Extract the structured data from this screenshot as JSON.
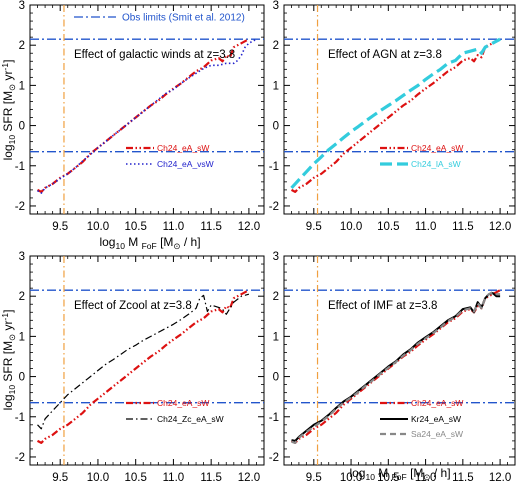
{
  "obs_legend": "Obs limits (Smit et al. 2012)",
  "ylabel": {
    "prefix": "log",
    "sub": "10",
    "main": " SFR [M",
    "sub2": "⊙",
    "main2": " yr",
    "sup": "-1",
    "end": "]"
  },
  "xlabel": {
    "prefix": "log",
    "sub": "10",
    "main": " M ",
    "sub2": "FoF",
    "main2": " [M",
    "sub3": "⊙",
    "end": " / h]"
  },
  "colors": {
    "red": "#dd1111",
    "blue": "#2222cc",
    "cyan": "#33ccdd",
    "black": "#000000",
    "grey": "#888888",
    "orange": "#f0a040",
    "obs_blue": "#2255cc"
  },
  "chart_data": [
    {
      "type": "line",
      "title": "Effect of galactic winds at z=3.8",
      "xlim": [
        9.1,
        12.2
      ],
      "ylim": [
        -2.2,
        3
      ],
      "xticks": [
        "9.5",
        "10.0",
        "10.5",
        "11.0",
        "11.5",
        "12.0"
      ],
      "yticks": [
        "-2",
        "-1",
        "0",
        "1",
        "2",
        "3"
      ],
      "hlines": [
        2.15,
        -0.65
      ],
      "vline": 9.55,
      "series": [
        {
          "name": "Ch24_eA_sW",
          "style": "dashdotdot",
          "color": "#dd1111",
          "width": 2.2,
          "x": [
            9.2,
            9.25,
            9.3,
            9.4,
            9.5,
            9.6,
            9.7,
            9.8,
            9.9,
            10.0,
            10.1,
            10.2,
            10.3,
            10.4,
            10.5,
            10.6,
            10.7,
            10.8,
            10.9,
            11.0,
            11.1,
            11.2,
            11.3,
            11.4,
            11.5,
            11.6,
            11.65,
            11.7,
            11.75,
            11.8,
            11.85,
            11.9,
            11.95,
            12.0
          ],
          "y": [
            -1.6,
            -1.65,
            -1.55,
            -1.45,
            -1.3,
            -1.2,
            -1.05,
            -0.9,
            -0.7,
            -0.55,
            -0.4,
            -0.25,
            -0.1,
            0.05,
            0.2,
            0.35,
            0.5,
            0.62,
            0.78,
            0.92,
            1.05,
            1.2,
            1.35,
            1.45,
            1.62,
            1.68,
            1.6,
            1.75,
            1.7,
            1.95,
            2.0,
            2.05,
            2.1,
            2.15
          ]
        },
        {
          "name": "Ch24_eA_vsW",
          "style": "dotted",
          "color": "#2222cc",
          "width": 1.6,
          "x": [
            9.2,
            9.25,
            9.3,
            9.4,
            9.5,
            9.6,
            9.7,
            9.8,
            9.9,
            10.0,
            10.1,
            10.2,
            10.3,
            10.4,
            10.5,
            10.6,
            10.7,
            10.8,
            10.9,
            11.0,
            11.1,
            11.2,
            11.3,
            11.4,
            11.5,
            11.6,
            11.7,
            11.8,
            11.85,
            11.9,
            11.95,
            12.0,
            12.1
          ],
          "y": [
            -1.62,
            -1.68,
            -1.55,
            -1.45,
            -1.32,
            -1.2,
            -1.05,
            -0.88,
            -0.72,
            -0.55,
            -0.4,
            -0.25,
            -0.1,
            0.05,
            0.2,
            0.35,
            0.5,
            0.65,
            0.8,
            0.9,
            1.05,
            1.18,
            1.3,
            1.42,
            1.5,
            1.5,
            1.55,
            1.55,
            1.62,
            1.75,
            1.95,
            2.05,
            2.15
          ]
        }
      ]
    },
    {
      "type": "line",
      "title": "Effect of AGN at z=3.8",
      "xlim": [
        9.1,
        12.2
      ],
      "ylim": [
        -2.2,
        3
      ],
      "xticks": [
        "9.5",
        "10.0",
        "10.5",
        "11.0",
        "11.5",
        "12.0"
      ],
      "yticks": [
        "-2",
        "-1",
        "0",
        "1",
        "2",
        "3"
      ],
      "hlines": [
        2.15,
        -0.65
      ],
      "vline": 9.55,
      "series": [
        {
          "name": "Ch24_eA_sW",
          "style": "dashdotdot",
          "color": "#dd1111",
          "width": 2.2,
          "x": [
            9.2,
            9.25,
            9.3,
            9.4,
            9.5,
            9.6,
            9.7,
            9.8,
            9.9,
            10.0,
            10.1,
            10.2,
            10.3,
            10.4,
            10.5,
            10.6,
            10.7,
            10.8,
            10.9,
            11.0,
            11.1,
            11.2,
            11.3,
            11.4,
            11.5,
            11.6,
            11.65,
            11.7,
            11.75,
            11.8,
            11.85,
            11.9,
            11.95,
            12.0
          ],
          "y": [
            -1.6,
            -1.65,
            -1.55,
            -1.45,
            -1.3,
            -1.2,
            -1.05,
            -0.9,
            -0.7,
            -0.55,
            -0.4,
            -0.25,
            -0.1,
            0.05,
            0.2,
            0.35,
            0.5,
            0.62,
            0.78,
            0.92,
            1.05,
            1.2,
            1.35,
            1.45,
            1.62,
            1.68,
            1.6,
            1.75,
            1.7,
            1.95,
            2.0,
            2.05,
            2.1,
            2.15
          ]
        },
        {
          "name": "Ch24_lA_sW",
          "style": "longdash",
          "color": "#33ccdd",
          "width": 3.2,
          "x": [
            9.2,
            9.3,
            9.4,
            9.5,
            9.6,
            9.7,
            9.8,
            9.9,
            10.0,
            10.1,
            10.2,
            10.3,
            10.4,
            10.5,
            10.6,
            10.7,
            10.8,
            10.9,
            11.0,
            11.1,
            11.2,
            11.3,
            11.4,
            11.5,
            11.6,
            11.7,
            11.75,
            11.8,
            11.9,
            12.0
          ],
          "y": [
            -1.55,
            -1.35,
            -1.15,
            -0.95,
            -0.78,
            -0.6,
            -0.45,
            -0.3,
            -0.15,
            -0.02,
            0.12,
            0.25,
            0.38,
            0.5,
            0.62,
            0.75,
            0.88,
            1.0,
            1.15,
            1.28,
            1.4,
            1.55,
            1.62,
            1.8,
            1.85,
            1.9,
            1.8,
            1.95,
            2.05,
            2.15
          ]
        }
      ]
    },
    {
      "type": "line",
      "title": "Effect of Zcool at z=3.8",
      "xlim": [
        9.1,
        12.2
      ],
      "ylim": [
        -2.2,
        3
      ],
      "xticks": [
        "9.5",
        "10.0",
        "10.5",
        "11.0",
        "11.5",
        "12.0"
      ],
      "yticks": [
        "-2",
        "-1",
        "0",
        "1",
        "2",
        "3"
      ],
      "hlines": [
        2.15,
        -0.65
      ],
      "vline": 9.55,
      "series": [
        {
          "name": "Ch24_eA_sW",
          "style": "dashdotdot",
          "color": "#dd1111",
          "width": 2.2,
          "x": [
            9.2,
            9.25,
            9.3,
            9.4,
            9.5,
            9.6,
            9.7,
            9.8,
            9.9,
            10.0,
            10.1,
            10.2,
            10.3,
            10.4,
            10.5,
            10.6,
            10.7,
            10.8,
            10.9,
            11.0,
            11.1,
            11.2,
            11.3,
            11.4,
            11.5,
            11.6,
            11.65,
            11.7,
            11.75,
            11.8,
            11.85,
            11.9,
            11.95,
            12.0
          ],
          "y": [
            -1.6,
            -1.65,
            -1.55,
            -1.45,
            -1.3,
            -1.2,
            -1.05,
            -0.9,
            -0.7,
            -0.55,
            -0.4,
            -0.25,
            -0.1,
            0.05,
            0.2,
            0.35,
            0.5,
            0.62,
            0.78,
            0.92,
            1.05,
            1.2,
            1.35,
            1.45,
            1.62,
            1.68,
            1.6,
            1.75,
            1.7,
            1.95,
            2.0,
            2.05,
            2.1,
            2.15
          ]
        },
        {
          "name": "Ch24_Zc_eA_sW",
          "style": "dashdot",
          "color": "#000000",
          "width": 1.2,
          "x": [
            9.2,
            9.25,
            9.3,
            9.4,
            9.5,
            9.6,
            9.7,
            9.8,
            9.9,
            10.0,
            10.1,
            10.2,
            10.3,
            10.4,
            10.5,
            10.6,
            10.7,
            10.8,
            10.9,
            11.0,
            11.1,
            11.2,
            11.3,
            11.35,
            11.4,
            11.45,
            11.5,
            11.6,
            11.65,
            11.7,
            11.8,
            11.9,
            12.0
          ],
          "y": [
            -1.2,
            -1.3,
            -1.05,
            -0.85,
            -0.65,
            -0.45,
            -0.3,
            -0.15,
            0.0,
            0.15,
            0.3,
            0.42,
            0.55,
            0.68,
            0.78,
            0.9,
            1.0,
            1.1,
            1.2,
            1.3,
            1.42,
            1.55,
            1.7,
            1.95,
            2.02,
            1.62,
            1.78,
            1.72,
            1.68,
            1.55,
            1.85,
            2.0,
            2.05
          ]
        }
      ]
    },
    {
      "type": "line",
      "title": "Effect of IMF at z=3.8",
      "xlim": [
        9.1,
        12.2
      ],
      "ylim": [
        -2.2,
        3
      ],
      "xticks": [
        "9.5",
        "10.0",
        "10.5",
        "11.0",
        "11.5",
        "12.0"
      ],
      "yticks": [
        "-2",
        "-1",
        "0",
        "1",
        "2",
        "3"
      ],
      "hlines": [
        2.15,
        -0.65
      ],
      "vline": 9.55,
      "series": [
        {
          "name": "Ch24_eA_sW",
          "style": "dashdotdot",
          "color": "#dd1111",
          "width": 2.2,
          "x": [
            9.2,
            9.25,
            9.3,
            9.4,
            9.5,
            9.6,
            9.7,
            9.8,
            9.9,
            10.0,
            10.1,
            10.2,
            10.3,
            10.4,
            10.5,
            10.6,
            10.7,
            10.8,
            10.9,
            11.0,
            11.1,
            11.2,
            11.3,
            11.4,
            11.5,
            11.6,
            11.65,
            11.7,
            11.75,
            11.8,
            11.85,
            11.9,
            11.95,
            12.0
          ],
          "y": [
            -1.6,
            -1.65,
            -1.55,
            -1.45,
            -1.3,
            -1.2,
            -1.05,
            -0.9,
            -0.7,
            -0.55,
            -0.4,
            -0.25,
            -0.1,
            0.05,
            0.2,
            0.35,
            0.5,
            0.62,
            0.78,
            0.92,
            1.05,
            1.2,
            1.35,
            1.45,
            1.62,
            1.68,
            1.6,
            1.75,
            1.7,
            1.95,
            2.0,
            2.05,
            2.1,
            2.15
          ]
        },
        {
          "name": "Kr24_eA_sW",
          "style": "solid",
          "color": "#000000",
          "width": 2.0,
          "x": [
            9.2,
            9.25,
            9.3,
            9.4,
            9.5,
            9.6,
            9.7,
            9.8,
            9.9,
            10.0,
            10.1,
            10.2,
            10.3,
            10.4,
            10.5,
            10.6,
            10.7,
            10.8,
            10.9,
            11.0,
            11.1,
            11.2,
            11.3,
            11.4,
            11.5,
            11.6,
            11.65,
            11.7,
            11.75,
            11.8,
            11.85,
            11.9,
            11.95,
            12.0
          ],
          "y": [
            -1.58,
            -1.6,
            -1.5,
            -1.35,
            -1.2,
            -1.1,
            -0.95,
            -0.78,
            -0.62,
            -0.5,
            -0.35,
            -0.2,
            -0.05,
            0.1,
            0.25,
            0.38,
            0.55,
            0.68,
            0.85,
            0.98,
            1.1,
            1.25,
            1.4,
            1.5,
            1.68,
            1.72,
            1.6,
            1.85,
            1.72,
            1.95,
            2.05,
            2.08,
            2.0,
            2.0
          ]
        },
        {
          "name": "Sa24_eA_sW",
          "style": "dashed",
          "color": "#888888",
          "width": 2.2,
          "x": [
            9.2,
            9.25,
            9.3,
            9.4,
            9.5,
            9.6,
            9.7,
            9.8,
            9.9,
            10.0,
            10.1,
            10.2,
            10.3,
            10.4,
            10.5,
            10.6,
            10.7,
            10.8,
            10.9,
            11.0,
            11.1,
            11.2,
            11.3,
            11.4,
            11.5,
            11.6,
            11.65,
            11.7,
            11.75,
            11.8,
            11.85,
            11.9,
            11.95,
            12.0
          ],
          "y": [
            -1.62,
            -1.65,
            -1.52,
            -1.38,
            -1.25,
            -1.12,
            -0.98,
            -0.8,
            -0.65,
            -0.52,
            -0.38,
            -0.22,
            -0.08,
            0.08,
            0.22,
            0.36,
            0.52,
            0.66,
            0.82,
            0.95,
            1.08,
            1.22,
            1.38,
            1.48,
            1.65,
            1.7,
            1.62,
            1.82,
            1.7,
            1.95,
            2.05,
            2.1,
            2.05,
            2.05
          ]
        }
      ]
    }
  ]
}
